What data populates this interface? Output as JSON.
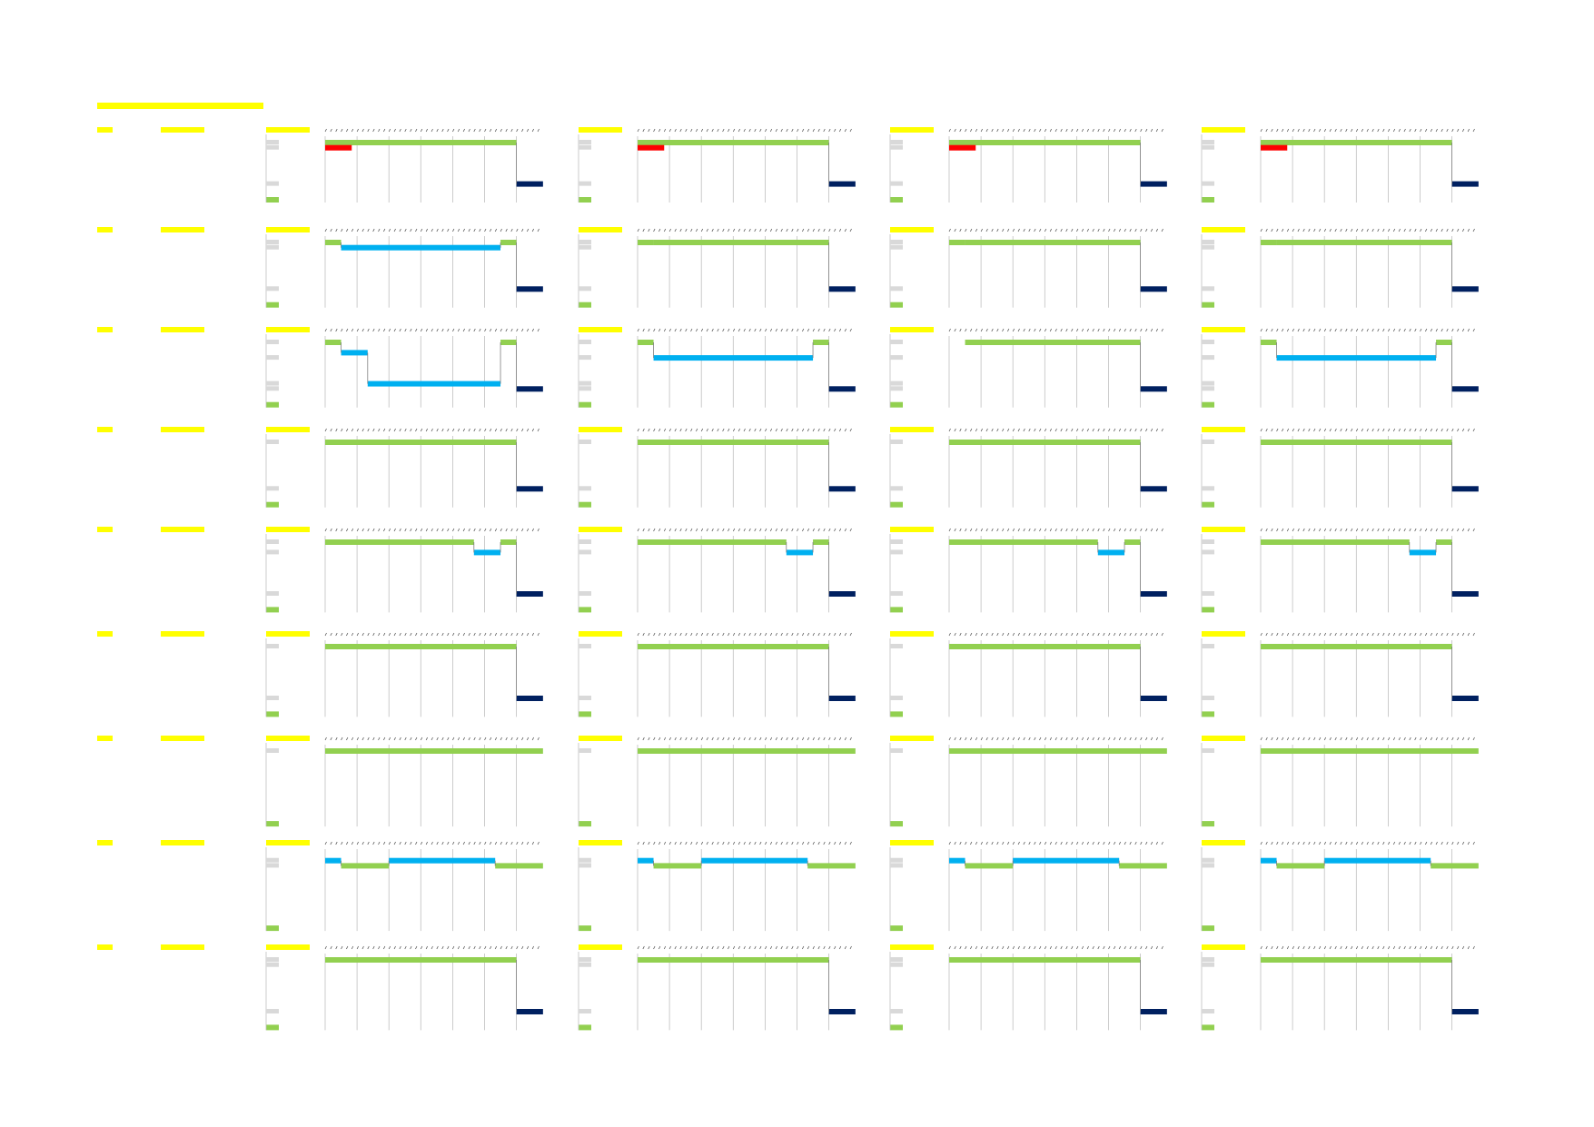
{
  "colors": {
    "header_yellow": "#ffff00",
    "work": "#92d050",
    "standby": "#00b0f0",
    "off": "#002060",
    "alert": "#ff0000",
    "gridline": "#bfbfbf",
    "count_cell": "#d9d9d9",
    "text": "#1f1f1f"
  },
  "sheet": {
    "title": ""
  },
  "blocks": [
    {
      "rows": [
        {
          "left": "",
          "mid": "",
          "counts": [
            "",
            "",
            "",
            ""
          ]
        },
        {
          "left": "",
          "mid": "",
          "counts": [
            "",
            "",
            "",
            ""
          ]
        },
        {
          "left": "",
          "mid": ""
        },
        {
          "left": "",
          "mid": ""
        },
        {
          "left": "",
          "mid": ""
        },
        {
          "left": "",
          "mid": ""
        },
        {
          "left": "",
          "mid": ""
        },
        {
          "left": "",
          "mid": ""
        },
        {
          "left": "",
          "mid": "",
          "counts": [
            "",
            "",
            "",
            ""
          ]
        },
        {
          "left": "",
          "mid": ""
        }
      ],
      "bars": [
        {
          "row": 0,
          "s": 0,
          "e": 36,
          "c": "work"
        },
        {
          "row": 1,
          "s": 0,
          "e": 5,
          "c": "alert"
        },
        {
          "row": 8,
          "s": 36,
          "e": 41,
          "c": "off"
        }
      ]
    },
    {
      "rows": [
        {
          "left": "",
          "mid": "",
          "counts": [
            "",
            "",
            "",
            ""
          ]
        },
        {
          "left": "",
          "mid": "",
          "counts": [
            "",
            "",
            "",
            ""
          ]
        },
        {
          "left": "",
          "mid": ""
        },
        {
          "left": "",
          "mid": ""
        },
        {
          "left": "",
          "mid": ""
        },
        {
          "left": "",
          "mid": ""
        },
        {
          "left": "",
          "mid": ""
        },
        {
          "left": "",
          "mid": ""
        },
        {
          "left": "",
          "mid": ""
        },
        {
          "left": "",
          "mid": "",
          "counts": [
            "",
            "",
            "",
            ""
          ]
        },
        {
          "left": "",
          "mid": ""
        }
      ],
      "bars": [
        {
          "row": 0,
          "s": 0,
          "e": 3,
          "c": "work"
        },
        {
          "row": 1,
          "s": 3,
          "e": 33,
          "c": "standby",
          "panels": [
            0
          ]
        },
        {
          "row": 0,
          "s": 33,
          "e": 36,
          "c": "work",
          "panels": [
            0
          ]
        },
        {
          "row": 0,
          "s": 3,
          "e": 36,
          "c": "work",
          "panels": [
            1,
            2,
            3
          ]
        },
        {
          "row": 9,
          "s": 36,
          "e": 41,
          "c": "off"
        }
      ]
    },
    {
      "rows": [
        {
          "left": "",
          "mid": "",
          "counts": [
            "",
            "",
            "",
            ""
          ]
        },
        {
          "left": "",
          "mid": ""
        },
        {
          "left": "",
          "mid": ""
        },
        {
          "left": "",
          "mid": "",
          "counts": [
            "",
            "",
            "",
            ""
          ]
        },
        {
          "left": "",
          "mid": ""
        },
        {
          "left": "",
          "mid": ""
        },
        {
          "left": "",
          "mid": ""
        },
        {
          "left": "",
          "mid": ""
        },
        {
          "left": "",
          "mid": "",
          "counts": [
            "",
            "",
            "",
            ""
          ]
        },
        {
          "left": "",
          "mid": "",
          "counts": [
            "",
            "",
            "",
            ""
          ]
        },
        {
          "left": "",
          "mid": ""
        }
      ],
      "bars": [
        {
          "row": 0,
          "s": 0,
          "e": 3,
          "c": "work",
          "panels": [
            0,
            1,
            3
          ]
        },
        {
          "row": 0,
          "s": 3,
          "e": 36,
          "c": "work",
          "panels": [
            2
          ]
        },
        {
          "row": 2,
          "s": 3,
          "e": 8,
          "c": "standby",
          "panels": [
            0
          ]
        },
        {
          "row": 8,
          "s": 8,
          "e": 33,
          "c": "standby",
          "panels": [
            0
          ]
        },
        {
          "row": 3,
          "s": 3,
          "e": 33,
          "c": "standby",
          "panels": [
            1,
            3
          ]
        },
        {
          "row": 0,
          "s": 33,
          "e": 36,
          "c": "work",
          "panels": [
            0,
            1,
            3
          ]
        },
        {
          "row": 9,
          "s": 36,
          "e": 41,
          "c": "off"
        }
      ]
    },
    {
      "rows": [
        {
          "left": "",
          "mid": "",
          "counts": [
            "",
            "",
            "",
            ""
          ]
        },
        {
          "left": "",
          "mid": ""
        },
        {
          "left": "",
          "mid": ""
        },
        {
          "left": "",
          "mid": ""
        },
        {
          "left": "",
          "mid": ""
        },
        {
          "left": "",
          "mid": ""
        },
        {
          "left": "",
          "mid": ""
        },
        {
          "left": "",
          "mid": ""
        },
        {
          "left": "",
          "mid": ""
        },
        {
          "left": "",
          "mid": "",
          "counts": [
            "",
            "",
            "",
            ""
          ]
        },
        {
          "left": "",
          "mid": ""
        }
      ],
      "bars": [
        {
          "row": 0,
          "s": 0,
          "e": 36,
          "c": "work"
        },
        {
          "row": 9,
          "s": 36,
          "e": 41,
          "c": "off"
        }
      ]
    },
    {
      "rows": [
        {
          "left": "",
          "mid": "",
          "counts": [
            "",
            "",
            "",
            ""
          ]
        },
        {
          "left": "",
          "mid": ""
        },
        {
          "left": "",
          "mid": "",
          "counts": [
            "",
            "",
            "",
            ""
          ]
        },
        {
          "left": "",
          "mid": ""
        },
        {
          "left": "",
          "mid": ""
        },
        {
          "left": "",
          "mid": ""
        },
        {
          "left": "",
          "mid": ""
        },
        {
          "left": "",
          "mid": ""
        },
        {
          "left": "",
          "mid": ""
        },
        {
          "left": "",
          "mid": ""
        },
        {
          "left": "",
          "mid": "",
          "counts": [
            "",
            "",
            "",
            ""
          ]
        },
        {
          "left": "",
          "mid": ""
        }
      ],
      "bars": [
        {
          "row": 0,
          "s": 0,
          "e": 28,
          "c": "work"
        },
        {
          "row": 2,
          "s": 28,
          "e": 33,
          "c": "standby"
        },
        {
          "row": 0,
          "s": 33,
          "e": 36,
          "c": "work"
        },
        {
          "row": 10,
          "s": 36,
          "e": 41,
          "c": "off"
        }
      ]
    },
    {
      "rows": [
        {
          "left": "",
          "mid": "",
          "counts": [
            "",
            "",
            "",
            ""
          ]
        },
        {
          "left": "",
          "mid": ""
        },
        {
          "left": "",
          "mid": ""
        },
        {
          "left": "",
          "mid": ""
        },
        {
          "left": "",
          "mid": ""
        },
        {
          "left": "",
          "mid": ""
        },
        {
          "left": "",
          "mid": ""
        },
        {
          "left": "",
          "mid": ""
        },
        {
          "left": "",
          "mid": ""
        },
        {
          "left": "",
          "mid": ""
        },
        {
          "left": "",
          "mid": "",
          "counts": [
            "",
            "",
            "",
            ""
          ]
        },
        {
          "left": "",
          "mid": ""
        }
      ],
      "bars": [
        {
          "row": 0,
          "s": 0,
          "e": 36,
          "c": "work"
        },
        {
          "row": 10,
          "s": 36,
          "e": 41,
          "c": "off"
        }
      ]
    },
    {
      "rows": [
        {
          "left": "",
          "mid": "",
          "counts": [
            "",
            "",
            "",
            ""
          ]
        },
        {
          "left": "",
          "mid": ""
        },
        {
          "left": "",
          "mid": ""
        },
        {
          "left": "",
          "mid": ""
        },
        {
          "left": "",
          "mid": ""
        },
        {
          "left": "",
          "mid": ""
        },
        {
          "left": "",
          "mid": ""
        },
        {
          "left": "",
          "mid": ""
        },
        {
          "left": "",
          "mid": ""
        },
        {
          "left": "",
          "mid": ""
        },
        {
          "left": "",
          "mid": ""
        },
        {
          "left": "",
          "mid": ""
        },
        {
          "left": "",
          "mid": ""
        }
      ],
      "bars": [
        {
          "row": 0,
          "s": 0,
          "e": 41,
          "c": "work"
        }
      ]
    },
    {
      "rows": [
        {
          "left": "",
          "mid": ""
        },
        {
          "left": "",
          "mid": "",
          "counts": [
            "",
            "",
            "",
            ""
          ]
        },
        {
          "left": "",
          "mid": "",
          "counts": [
            "",
            "",
            "",
            ""
          ]
        },
        {
          "left": "",
          "mid": ""
        },
        {
          "left": "",
          "mid": ""
        },
        {
          "left": "",
          "mid": ""
        },
        {
          "left": "",
          "mid": ""
        },
        {
          "left": "",
          "mid": ""
        },
        {
          "left": "",
          "mid": ""
        },
        {
          "left": "",
          "mid": ""
        },
        {
          "left": "",
          "mid": ""
        },
        {
          "left": "",
          "mid": ""
        },
        {
          "left": "",
          "mid": ""
        }
      ],
      "bars": [
        {
          "row": 1,
          "s": 0,
          "e": 3,
          "c": "standby"
        },
        {
          "row": 2,
          "s": 3,
          "e": 12,
          "c": "work"
        },
        {
          "row": 1,
          "s": 12,
          "e": 32,
          "c": "standby"
        },
        {
          "row": 2,
          "s": 32,
          "e": 41,
          "c": "work"
        }
      ]
    },
    {
      "rows": [
        {
          "left": "",
          "mid": "",
          "counts": [
            "",
            "",
            "",
            ""
          ]
        },
        {
          "left": "",
          "mid": "",
          "counts": [
            "",
            "",
            "",
            ""
          ]
        },
        {
          "left": "",
          "mid": ""
        },
        {
          "left": "",
          "mid": ""
        },
        {
          "left": "",
          "mid": ""
        },
        {
          "left": "",
          "mid": ""
        },
        {
          "left": "",
          "mid": ""
        },
        {
          "left": "",
          "mid": ""
        },
        {
          "left": "",
          "mid": ""
        },
        {
          "left": "",
          "mid": ""
        },
        {
          "left": "",
          "mid": "",
          "counts": [
            "",
            "",
            "",
            ""
          ]
        },
        {
          "left": "",
          "mid": ""
        }
      ],
      "bars": [
        {
          "row": 0,
          "s": 0,
          "e": 36,
          "c": "work"
        },
        {
          "row": 10,
          "s": 36,
          "e": 41,
          "c": "off"
        }
      ]
    }
  ]
}
